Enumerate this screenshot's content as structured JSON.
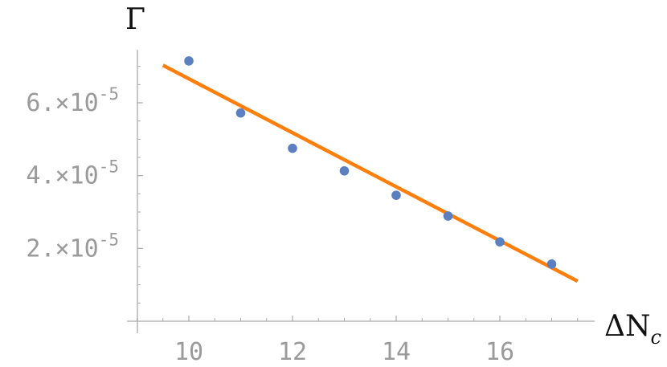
{
  "chart_data": {
    "type": "scatter",
    "title": "",
    "xlabel": "ΔN",
    "xlabel_subscript": "c",
    "ylabel": "Γ",
    "xlim": [
      9.0,
      17.6
    ],
    "ylim": [
      0.0,
      7.4e-05
    ],
    "x_ticks": [
      10,
      12,
      14,
      16
    ],
    "x_tick_labels": [
      "10",
      "12",
      "14",
      "16"
    ],
    "y_ticks": [
      2e-05,
      4e-05,
      6e-05
    ],
    "y_tick_mantissas": [
      "2.",
      "4.",
      "6."
    ],
    "y_tick_exponent": "-5",
    "grid": false,
    "legend": "none",
    "series": [
      {
        "type": "scatter",
        "color": "#5b7fbf",
        "x": [
          10,
          11,
          12,
          13,
          14,
          15,
          16,
          17
        ],
        "y": [
          7.15e-05,
          5.72e-05,
          4.75e-05,
          4.13e-05,
          3.46e-05,
          2.89e-05,
          2.18e-05,
          1.57e-05
        ]
      },
      {
        "type": "line",
        "color": "#ff7f0e",
        "x": [
          9.5,
          17.5
        ],
        "y": [
          7.03e-05,
          1.1e-05
        ]
      }
    ]
  }
}
